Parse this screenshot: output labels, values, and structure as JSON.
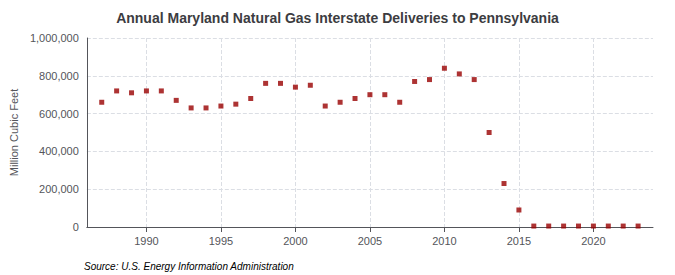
{
  "chart_data": {
    "type": "scatter",
    "title": "Annual Maryland Natural Gas Interstate Deliveries to Pennsylvania",
    "ylabel": "Million Cubic Feet",
    "source": "Source: U.S. Energy Information Administration",
    "x": [
      1987,
      1988,
      1989,
      1990,
      1991,
      1992,
      1993,
      1994,
      1995,
      1996,
      1997,
      1998,
      1999,
      2000,
      2001,
      2002,
      2003,
      2004,
      2005,
      2006,
      2007,
      2008,
      2009,
      2010,
      2011,
      2012,
      2013,
      2014,
      2015,
      2016,
      2017,
      2018,
      2019,
      2020,
      2021,
      2022,
      2023
    ],
    "values": [
      660000,
      720000,
      710000,
      720000,
      720000,
      670000,
      630000,
      630000,
      640000,
      650000,
      680000,
      760000,
      760000,
      740000,
      750000,
      640000,
      660000,
      680000,
      700000,
      700000,
      660000,
      770000,
      780000,
      840000,
      810000,
      780000,
      500000,
      230000,
      90000,
      5000,
      5000,
      5000,
      5000,
      5000,
      5000,
      5000,
      5000
    ],
    "color": "#990000",
    "marker": "square",
    "xlim": [
      1986,
      2024
    ],
    "xticks": [
      1990,
      1995,
      2000,
      2005,
      2010,
      2015,
      2020
    ],
    "ylim": [
      0,
      1000000
    ],
    "yticks": [
      0,
      {
        "value": 200000,
        "label": "200,000"
      },
      {
        "value": 400000,
        "label": "400,000"
      },
      {
        "value": 600000,
        "label": "600,000"
      },
      {
        "value": 800000,
        "label": "800,000"
      },
      {
        "value": 1000000,
        "label": "1,000,000"
      }
    ],
    "grid": true
  }
}
